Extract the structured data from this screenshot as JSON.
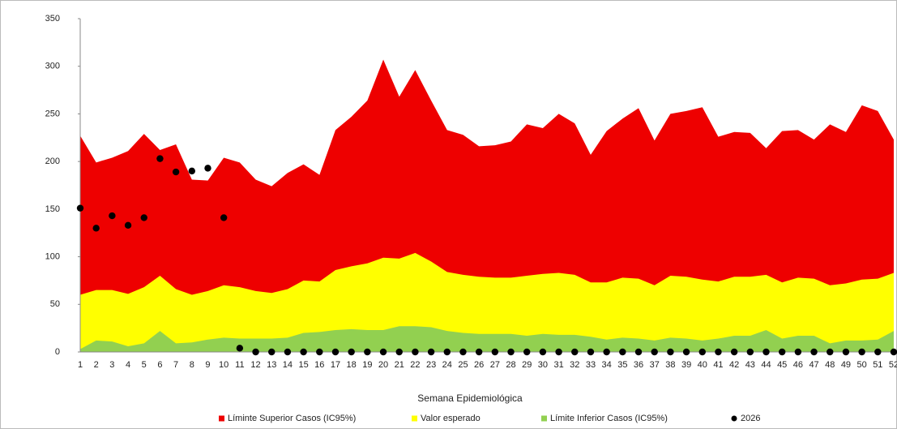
{
  "chart_data": {
    "type": "area",
    "x_label": "Semana Epidemiológica",
    "categories": [
      "1",
      "2",
      "3",
      "4",
      "5",
      "6",
      "7",
      "8",
      "9",
      "10",
      "11",
      "12",
      "13",
      "14",
      "15",
      "16",
      "17",
      "18",
      "19",
      "20",
      "21",
      "22",
      "23",
      "24",
      "25",
      "26",
      "27",
      "28",
      "29",
      "30",
      "31",
      "32",
      "33",
      "34",
      "35",
      "36",
      "37",
      "38",
      "39",
      "40",
      "41",
      "42",
      "43",
      "44",
      "45",
      "46",
      "47",
      "48",
      "49",
      "50",
      "51",
      "52"
    ],
    "ylim": [
      0,
      350
    ],
    "yticks": [
      0,
      50,
      100,
      150,
      200,
      250,
      300,
      350
    ],
    "series": [
      {
        "name": "Líminte Superior Casos (IC95%)",
        "color": "#ee0000",
        "style": "area",
        "values": [
          227,
          199,
          204,
          211,
          229,
          212,
          218,
          181,
          180,
          204,
          199,
          181,
          174,
          188,
          197,
          186,
          233,
          247,
          264,
          307,
          268,
          296,
          264,
          233,
          228,
          216,
          217,
          221,
          239,
          235,
          250,
          240,
          207,
          232,
          245,
          256,
          222,
          250,
          253,
          257,
          226,
          231,
          230,
          214,
          232,
          233,
          223,
          239,
          231,
          259,
          253,
          223
        ]
      },
      {
        "name": "Valor esperado",
        "color": "#ffff00",
        "style": "area",
        "values": [
          60,
          65,
          65,
          61,
          68,
          80,
          66,
          60,
          64,
          70,
          68,
          64,
          62,
          66,
          75,
          74,
          86,
          90,
          93,
          99,
          98,
          104,
          95,
          84,
          81,
          79,
          78,
          78,
          80,
          82,
          83,
          81,
          73,
          73,
          78,
          77,
          70,
          80,
          79,
          76,
          74,
          79,
          79,
          81,
          73,
          78,
          77,
          70,
          72,
          76,
          77,
          83
        ]
      },
      {
        "name": "Límite Inferior Casos (IC95%)",
        "color": "#92d050",
        "style": "area",
        "values": [
          3,
          12,
          11,
          6,
          9,
          22,
          9,
          10,
          13,
          15,
          14,
          14,
          14,
          15,
          20,
          21,
          23,
          24,
          23,
          23,
          27,
          27,
          26,
          22,
          20,
          19,
          19,
          19,
          17,
          19,
          18,
          18,
          16,
          13,
          15,
          14,
          12,
          15,
          14,
          12,
          14,
          17,
          17,
          23,
          14,
          17,
          17,
          9,
          12,
          12,
          13,
          22
        ]
      },
      {
        "name": "2026",
        "color": "#000000",
        "style": "dots",
        "values": [
          151,
          130,
          143,
          133,
          141,
          203,
          189,
          190,
          193,
          141,
          4,
          0,
          0,
          0,
          0,
          0,
          0,
          0,
          0,
          0,
          0,
          0,
          0,
          0,
          0,
          0,
          0,
          0,
          0,
          0,
          0,
          0,
          0,
          0,
          0,
          0,
          0,
          0,
          0,
          0,
          0,
          0,
          0,
          0,
          0,
          0,
          0,
          0,
          0,
          0,
          0,
          0
        ]
      }
    ]
  }
}
